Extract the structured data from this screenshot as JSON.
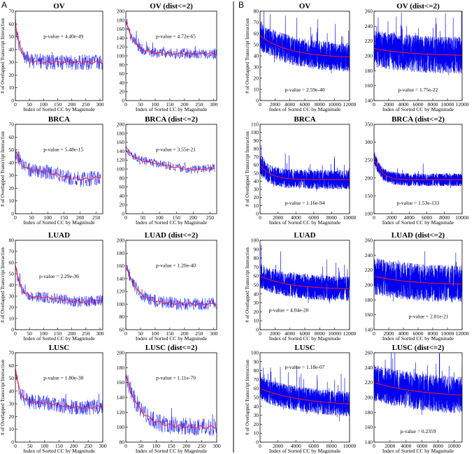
{
  "figure": {
    "panel_labels": [
      "A",
      "B"
    ],
    "colors": {
      "blue": "#1a1aff",
      "blue_dense": "#0000ee",
      "red": "#ff1a1a",
      "axis": "#000000",
      "divider": "#000000"
    }
  },
  "chart_data": [
    {
      "id": "A-OV",
      "section": "A",
      "type": "line",
      "title": "OV",
      "pvalue": "p-value = 4.40e-49",
      "pvalue_pos": "upper-right",
      "xlabel": "Index of Sorted CC by Magnitude",
      "ylabel": "# of Overlapped Transcript Interaction",
      "xlim": [
        0,
        310
      ],
      "ylim": [
        0,
        70
      ],
      "xticks": [
        0,
        50,
        100,
        150,
        200,
        250,
        300
      ],
      "yticks": [
        0,
        10,
        20,
        30,
        40,
        50,
        60,
        70
      ],
      "n": 310,
      "start": 60,
      "end": 30,
      "decay": 18,
      "noise": 6,
      "dense": false,
      "hump": 0
    },
    {
      "id": "A-OV2",
      "section": "A",
      "type": "line",
      "title": "OV (dist<=2)",
      "pvalue": "p-value = 4.72e-65",
      "pvalue_pos": "upper-right",
      "xlabel": "Index of Sorted CC by Magnitude",
      "ylabel": "",
      "xlim": [
        0,
        310
      ],
      "ylim": [
        0,
        200
      ],
      "xticks": [
        0,
        50,
        100,
        150,
        200,
        250,
        300
      ],
      "yticks": [
        0,
        20,
        40,
        60,
        80,
        100,
        120,
        140,
        160,
        180,
        200
      ],
      "n": 310,
      "start": 180,
      "end": 105,
      "decay": 28,
      "noise": 12,
      "dense": false,
      "hump": 0
    },
    {
      "id": "B-OV",
      "section": "B",
      "type": "line",
      "title": "OV",
      "pvalue": "p-value = 2.59e-40",
      "pvalue_pos": "lower-middle",
      "xlabel": "Index of Sorted CC by Magnitude",
      "ylabel": "# of Overlapped Transcript Interaction",
      "xlim": [
        0,
        12000
      ],
      "ylim": [
        0,
        80
      ],
      "xticks": [
        0,
        2000,
        4000,
        6000,
        8000,
        10000,
        12000
      ],
      "yticks": [
        0,
        10,
        20,
        30,
        40,
        50,
        60,
        70,
        80
      ],
      "n": 12000,
      "start": 58,
      "end": 38,
      "decay": 4000,
      "noise": 13,
      "dense": true,
      "hump": 0
    },
    {
      "id": "B-OV2",
      "section": "B",
      "type": "line",
      "title": "OV (dist<=2)",
      "pvalue": "p-value = 1.75e-22",
      "pvalue_pos": "lower-middle",
      "xlabel": "Index of Sorted CC by Magnitude",
      "ylabel": "",
      "xlim": [
        0,
        12000
      ],
      "ylim": [
        140,
        260
      ],
      "xticks": [
        0,
        2000,
        4000,
        6000,
        8000,
        10000,
        12000
      ],
      "yticks": [
        140,
        160,
        180,
        200,
        220,
        240,
        260
      ],
      "n": 12000,
      "start": 210,
      "end": 200,
      "decay": 5000,
      "noise": 25,
      "dense": true,
      "hump": 0
    },
    {
      "id": "A-BRCA",
      "section": "A",
      "type": "line",
      "title": "BRCA",
      "pvalue": "p-value = 5.48e-15",
      "pvalue_pos": "upper-right",
      "xlabel": "Index of Sorted CC by Magnitude",
      "ylabel": "# of Overlapped Transcript Interaction",
      "xlim": [
        0,
        270
      ],
      "ylim": [
        0,
        70
      ],
      "xticks": [
        0,
        50,
        100,
        150,
        200,
        250
      ],
      "yticks": [
        0,
        10,
        20,
        30,
        40,
        50,
        60,
        70
      ],
      "n": 265,
      "start": 50,
      "end": 30,
      "decay": 20,
      "noise": 6,
      "dense": false,
      "hump": 3
    },
    {
      "id": "A-BRCA2",
      "section": "A",
      "type": "line",
      "title": "BRCA (dist<=2)",
      "pvalue": "p-value = 3.55e-21",
      "pvalue_pos": "upper-right",
      "xlabel": "Index of Sorted CC by Magnitude",
      "ylabel": "",
      "xlim": [
        0,
        270
      ],
      "ylim": [
        0,
        200
      ],
      "xticks": [
        0,
        50,
        100,
        150,
        200,
        250
      ],
      "yticks": [
        0,
        20,
        40,
        60,
        80,
        100,
        120,
        140,
        160,
        180,
        200
      ],
      "n": 265,
      "start": 150,
      "end": 105,
      "decay": 30,
      "noise": 10,
      "dense": false,
      "hump": 6
    },
    {
      "id": "B-BRCA",
      "section": "B",
      "type": "line",
      "title": "BRCA",
      "pvalue": "p-value = 1.16e-94",
      "pvalue_pos": "lower-middle",
      "xlabel": "Index of Sorted CC by Magnitude",
      "ylabel": "# of Overlapped Transcript Interaction",
      "xlim": [
        0,
        10000
      ],
      "ylim": [
        0,
        110
      ],
      "xticks": [
        0,
        2000,
        4000,
        6000,
        8000,
        10000
      ],
      "yticks": [
        0,
        10,
        20,
        30,
        40,
        50,
        60,
        70,
        80,
        90,
        100,
        110
      ],
      "n": 10000,
      "start": 60,
      "end": 42,
      "decay": 1200,
      "noise": 12,
      "dense": true,
      "hump": 0
    },
    {
      "id": "B-BRCA2",
      "section": "B",
      "type": "line",
      "title": "BRCA (dist<=2)",
      "pvalue": "p-value = 1.53e-133",
      "pvalue_pos": "lower-middle",
      "xlabel": "Index of Sorted CC by Magnitude",
      "ylabel": "",
      "xlim": [
        0,
        10000
      ],
      "ylim": [
        100,
        350
      ],
      "xticks": [
        0,
        2000,
        4000,
        6000,
        8000,
        10000
      ],
      "yticks": [
        100,
        150,
        200,
        250,
        300,
        350
      ],
      "n": 10000,
      "start": 260,
      "end": 195,
      "decay": 800,
      "noise": 18,
      "dense": true,
      "hump": 0
    },
    {
      "id": "A-LUAD",
      "section": "A",
      "type": "line",
      "title": "LUAD",
      "pvalue": "p-value = 2.29e-36",
      "pvalue_pos": "middle",
      "xlabel": "Index of Sorted CC by Magnitude",
      "ylabel": "# of Overlapped Transcript Interaction",
      "xlim": [
        0,
        310
      ],
      "ylim": [
        0,
        80
      ],
      "xticks": [
        0,
        50,
        100,
        150,
        200,
        250,
        300
      ],
      "yticks": [
        0,
        10,
        20,
        30,
        40,
        50,
        60,
        70,
        80
      ],
      "n": 310,
      "start": 58,
      "end": 27,
      "decay": 18,
      "noise": 5,
      "dense": false,
      "hump": 2
    },
    {
      "id": "A-LUAD2",
      "section": "A",
      "type": "line",
      "title": "LUAD (dist<=2)",
      "pvalue": "p-value = 1.20e-40",
      "pvalue_pos": "upper-right",
      "xlabel": "Index of Sorted CC by Magnitude",
      "ylabel": "",
      "xlim": [
        0,
        310
      ],
      "ylim": [
        60,
        200
      ],
      "xticks": [
        0,
        50,
        100,
        150,
        200,
        250,
        300
      ],
      "yticks": [
        60,
        80,
        100,
        120,
        140,
        160,
        180,
        200
      ],
      "n": 310,
      "start": 160,
      "end": 100,
      "decay": 40,
      "noise": 10,
      "dense": false,
      "hump": 0
    },
    {
      "id": "B-LUAD",
      "section": "B",
      "type": "line",
      "title": "LUAD",
      "pvalue": "p-value = 4.04e-20",
      "pvalue_pos": "lower-left",
      "xlabel": "Index of Sorted CC by Magnitude",
      "ylabel": "# of Overlapped Transcript Interaction",
      "xlim": [
        0,
        12000
      ],
      "ylim": [
        0,
        100
      ],
      "xticks": [
        0,
        2000,
        4000,
        6000,
        8000,
        10000,
        12000
      ],
      "yticks": [
        0,
        10,
        20,
        30,
        40,
        50,
        60,
        70,
        80,
        90,
        100
      ],
      "n": 12000,
      "start": 60,
      "end": 45,
      "decay": 4000,
      "noise": 14,
      "dense": true,
      "hump": 0
    },
    {
      "id": "B-LUAD2",
      "section": "B",
      "type": "line",
      "title": "LUAD (dist<=2)",
      "pvalue": "p-value = 2.81e-21",
      "pvalue_pos": "lower-right",
      "xlabel": "Index of Sorted CC by Magnitude",
      "ylabel": "",
      "xlim": [
        0,
        12000
      ],
      "ylim": [
        140,
        260
      ],
      "xticks": [
        0,
        2000,
        4000,
        6000,
        8000,
        10000,
        12000
      ],
      "yticks": [
        140,
        160,
        180,
        200,
        220,
        240,
        260
      ],
      "n": 12000,
      "start": 212,
      "end": 200,
      "decay": 5000,
      "noise": 25,
      "dense": true,
      "hump": 0
    },
    {
      "id": "A-LUSC",
      "section": "A",
      "type": "line",
      "title": "LUSC",
      "pvalue": "p-value = 1.80e-38",
      "pvalue_pos": "upper-right",
      "xlabel": "Index of Sorted CC by Magnitude",
      "ylabel": "# of Overlapped Transcript Interaction",
      "xlim": [
        0,
        300
      ],
      "ylim": [
        0,
        70
      ],
      "xticks": [
        0,
        50,
        100,
        150,
        200,
        250,
        300
      ],
      "yticks": [
        0,
        10,
        20,
        30,
        40,
        50,
        60,
        70
      ],
      "n": 300,
      "start": 58,
      "end": 29,
      "decay": 16,
      "noise": 6,
      "dense": false,
      "hump": 2
    },
    {
      "id": "A-LUSC2",
      "section": "A",
      "type": "line",
      "title": "LUSC (dist<=2)",
      "pvalue": "p-value = 1.11e-79",
      "pvalue_pos": "upper-right",
      "xlabel": "Index of Sorted CC by Magnitude",
      "ylabel": "",
      "xlim": [
        0,
        300
      ],
      "ylim": [
        80,
        200
      ],
      "xticks": [
        0,
        50,
        100,
        150,
        200,
        250,
        300
      ],
      "yticks": [
        80,
        100,
        120,
        140,
        160,
        180,
        200
      ],
      "n": 300,
      "start": 170,
      "end": 100,
      "decay": 45,
      "noise": 12,
      "dense": false,
      "hump": 0
    },
    {
      "id": "B-LUSC",
      "section": "B",
      "type": "line",
      "title": "LUSC",
      "pvalue": "p-value = 1.18e-07",
      "pvalue_pos": "upper-middle",
      "xlabel": "Index of Sorted CC by Magnitude",
      "ylabel": "# of Overlapped Transcript Interaction",
      "xlim": [
        0,
        10000
      ],
      "ylim": [
        0,
        100
      ],
      "xticks": [
        0,
        2000,
        4000,
        6000,
        8000,
        10000
      ],
      "yticks": [
        0,
        10,
        20,
        30,
        40,
        50,
        60,
        70,
        80,
        90,
        100
      ],
      "n": 10000,
      "start": 60,
      "end": 40,
      "decay": 5000,
      "noise": 14,
      "dense": true,
      "hump": 0
    },
    {
      "id": "B-LUSC2",
      "section": "B",
      "type": "line",
      "title": "LUSC (dist<=2)",
      "pvalue": "p-value = 0.2359",
      "pvalue_pos": "lower-middle",
      "xlabel": "Index of Sorted CC by Magnitude",
      "ylabel": "",
      "xlim": [
        0,
        11000
      ],
      "ylim": [
        140,
        260
      ],
      "xticks": [
        0,
        2000,
        4000,
        6000,
        8000,
        10000
      ],
      "yticks": [
        140,
        160,
        180,
        200,
        220,
        240,
        260
      ],
      "n": 11000,
      "start": 220,
      "end": 200,
      "decay": 6000,
      "noise": 25,
      "dense": true,
      "hump": 0
    }
  ]
}
